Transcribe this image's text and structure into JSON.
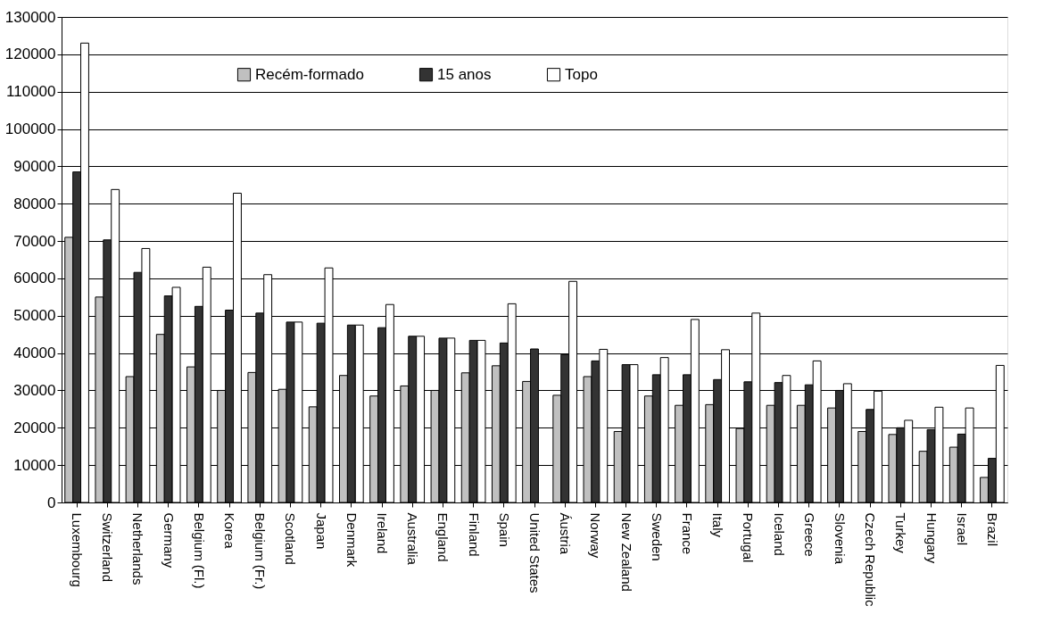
{
  "chart_data": {
    "type": "bar",
    "categories": [
      "Luxembourg",
      "Switzerland",
      "Netherlands",
      "Germany",
      "Belgium (Fl.)",
      "Korea",
      "Belgium (Fr.)",
      "Scotland",
      "Japan",
      "Denmark",
      "Ireland",
      "Australia",
      "England",
      "Finland",
      "Spain",
      "United States",
      "Áustria",
      "Norway",
      "New Zealand",
      "Sweden",
      "France",
      "Italy",
      "Portugal",
      "Iceland",
      "Greece",
      "Slovenia",
      "Czech Republic",
      "Turkey",
      "Hungary",
      "Israel",
      "Brazil"
    ],
    "series": [
      {
        "name": "Recém-formado",
        "color": "#c0c0c0",
        "values": [
          71000,
          55000,
          33700,
          45000,
          36300,
          30000,
          34800,
          30300,
          25600,
          34000,
          28500,
          31200,
          30000,
          34700,
          36600,
          32400,
          28700,
          33700,
          19000,
          28500,
          26000,
          26200,
          19800,
          26000,
          26000,
          25300,
          19000,
          18200,
          13700,
          14800,
          6700
        ]
      },
      {
        "name": "15 anos",
        "color": "#333333",
        "values": [
          88500,
          70300,
          61600,
          55300,
          52500,
          51500,
          50700,
          48300,
          48000,
          47500,
          46800,
          44500,
          44000,
          43400,
          42700,
          41100,
          39600,
          37900,
          36900,
          34200,
          34200,
          32900,
          32300,
          32100,
          31500,
          30000,
          24900,
          20000,
          19500,
          18300,
          11800
        ]
      },
      {
        "name": "Topo",
        "color": "#ffffff",
        "values": [
          123000,
          83800,
          68000,
          57600,
          63000,
          82800,
          61000,
          48300,
          62800,
          47500,
          53000,
          44500,
          44000,
          43400,
          53200,
          null,
          59200,
          41000,
          36900,
          38800,
          49000,
          40900,
          50700,
          34000,
          37900,
          31800,
          29800,
          22000,
          25500,
          25300,
          36700
        ]
      }
    ],
    "ylim": [
      0,
      130000
    ],
    "yticks": [
      0,
      10000,
      20000,
      30000,
      40000,
      50000,
      60000,
      70000,
      80000,
      90000,
      100000,
      110000,
      120000,
      130000
    ],
    "grid": "y",
    "legend": "top"
  }
}
